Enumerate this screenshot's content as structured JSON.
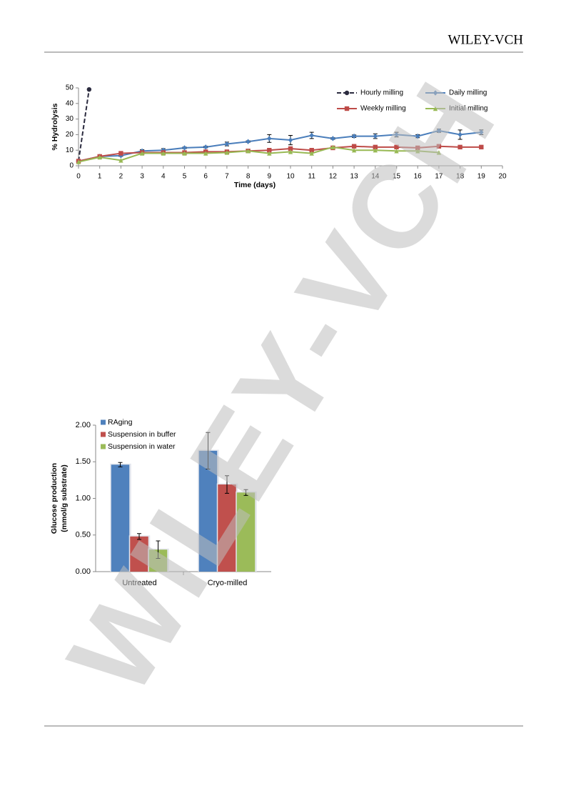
{
  "header": {
    "publisher": "WILEY-VCH"
  },
  "watermark": "WILEY-VCH",
  "chart_data": [
    {
      "type": "line",
      "x_label": "Time (days)",
      "y_label": "% Hydrolysis",
      "xlim": [
        0,
        20
      ],
      "xticks": [
        0,
        1,
        2,
        3,
        4,
        5,
        6,
        7,
        8,
        9,
        10,
        11,
        12,
        13,
        14,
        15,
        16,
        17,
        18,
        19,
        20
      ],
      "ylim": [
        0,
        50
      ],
      "yticks": [
        0,
        10,
        20,
        30,
        40,
        50
      ],
      "series": [
        {
          "name": "Hourly milling",
          "color": "#2b2b3f",
          "marker": "circle",
          "line_style": "dashed",
          "x": [
            0,
            0.5
          ],
          "values": [
            3,
            49
          ]
        },
        {
          "name": "Daily milling",
          "color": "#4a7ebb",
          "marker": "diamond",
          "line_style": "solid",
          "x": [
            0,
            1,
            2,
            3,
            4,
            5,
            6,
            7,
            8,
            9,
            10,
            11,
            12,
            13,
            14,
            15,
            16,
            17,
            18,
            19
          ],
          "values": [
            3,
            6,
            6.5,
            9.5,
            10,
            11.5,
            12,
            14,
            15.5,
            17.5,
            16.5,
            19.5,
            17.5,
            19,
            19,
            20,
            19,
            22.5,
            20,
            21.5
          ],
          "errors": [
            0.5,
            0.5,
            0.5,
            0.8,
            1,
            0.5,
            0.5,
            1.2,
            0.5,
            2.5,
            3,
            2,
            0.5,
            0.8,
            1.5,
            1.5,
            1,
            1,
            3,
            1.5
          ]
        },
        {
          "name": "Weekly milling",
          "color": "#be4b48",
          "marker": "square",
          "line_style": "solid",
          "x": [
            0,
            1,
            2,
            3,
            4,
            5,
            6,
            7,
            8,
            9,
            10,
            11,
            12,
            13,
            14,
            15,
            16,
            17,
            18,
            19
          ],
          "values": [
            3,
            6,
            8,
            8.5,
            8.5,
            8.5,
            9,
            9,
            9.5,
            10,
            11,
            10,
            11.5,
            12.5,
            12,
            12,
            11.5,
            12.5,
            12,
            12
          ]
        },
        {
          "name": "Initial milling",
          "color": "#98b954",
          "marker": "triangle",
          "line_style": "solid",
          "x": [
            0,
            1,
            2,
            3,
            4,
            5,
            6,
            7,
            8,
            9,
            10,
            11,
            12,
            13,
            14,
            15,
            16,
            17
          ],
          "values": [
            2.5,
            5.5,
            3.5,
            8,
            8,
            8,
            8,
            8.5,
            9.5,
            8,
            9,
            8,
            12,
            10,
            10,
            9.5,
            9.5,
            8.5
          ]
        }
      ]
    },
    {
      "type": "bar",
      "y_label": [
        "Glucose production",
        "(mmol/g substrate)"
      ],
      "categories": [
        "Untreated",
        "Cryo-milled"
      ],
      "ylim": [
        0,
        2
      ],
      "yticks": [
        {
          "value": 0,
          "label": "0.00"
        },
        {
          "value": 0.5,
          "label": "0.50"
        },
        {
          "value": 1,
          "label": "1.00"
        },
        {
          "value": 1.5,
          "label": "1.50"
        },
        {
          "value": 2,
          "label": "2.00"
        }
      ],
      "series": [
        {
          "name": "RAging",
          "color": "#4f81bd",
          "values": [
            1.46,
            1.65
          ],
          "errors": [
            0.03,
            0.25
          ]
        },
        {
          "name": "Suspension in buffer",
          "color": "#c0504d",
          "values": [
            0.48,
            1.19
          ],
          "errors": [
            0.04,
            0.12
          ]
        },
        {
          "name": "Suspension in water",
          "color": "#9bbb59",
          "values": [
            0.3,
            1.08
          ],
          "errors": [
            0.12,
            0.04
          ]
        }
      ]
    }
  ]
}
